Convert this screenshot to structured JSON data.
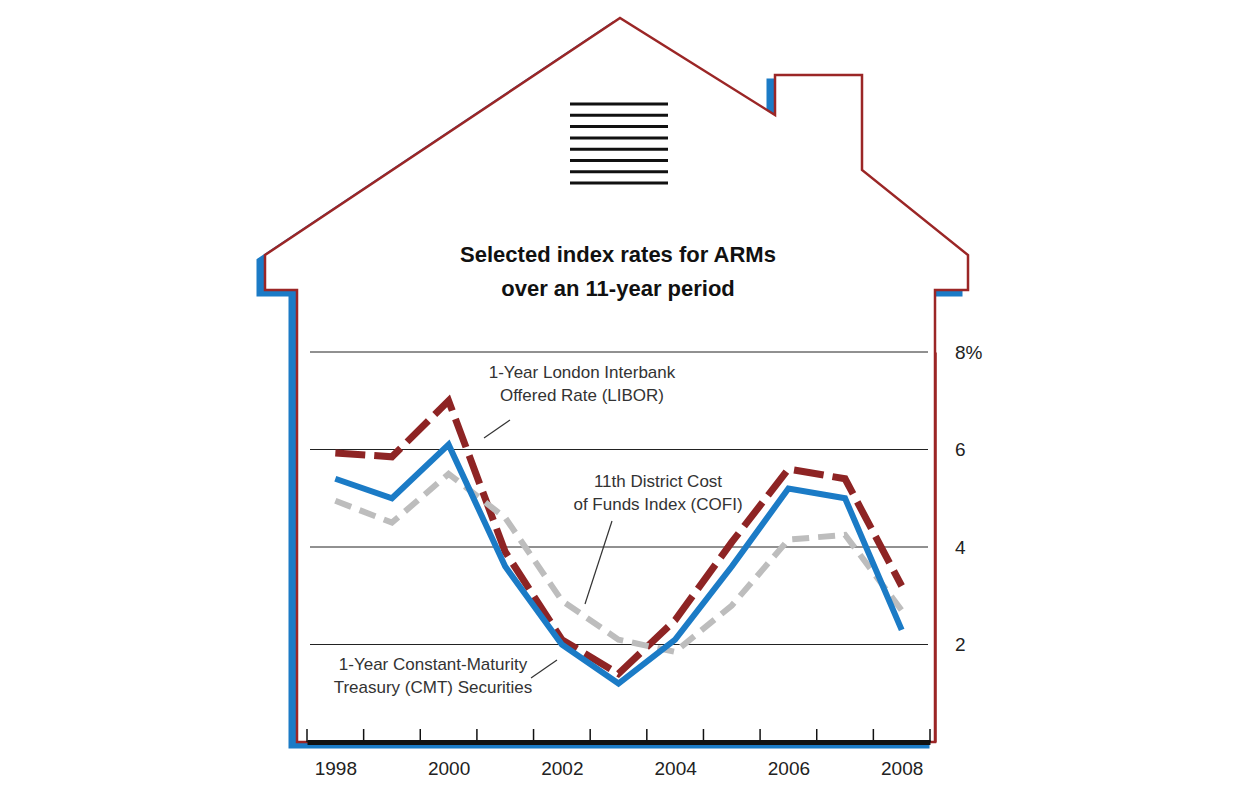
{
  "chart_data": {
    "type": "line",
    "title": [
      "Selected index rates for ARMs",
      "over an 11-year period"
    ],
    "x": [
      1998,
      1999,
      2000,
      2001,
      2002,
      2003,
      2004,
      2005,
      2006,
      2007,
      2008
    ],
    "xlim": [
      1997.5,
      2008.5
    ],
    "xticks": [
      1998,
      2000,
      2002,
      2004,
      2006,
      2008
    ],
    "xminor_ticks": [
      1997.5,
      1998.5,
      1999.5,
      2000.5,
      2001.5,
      2002.5,
      2003.5,
      2004.5,
      2005.5,
      2006.5,
      2007.5,
      2008.5
    ],
    "ylim": [
      0,
      8
    ],
    "yticks": [
      2,
      4,
      6,
      {
        "value": 8,
        "label": "8%"
      }
    ],
    "grid": true,
    "series": [
      {
        "name": [
          "1-Year London Interbank",
          "Offered Rate (LIBOR)"
        ],
        "color": "#8e2424",
        "line_style": "dashed",
        "values": [
          5.93,
          5.85,
          7.0,
          3.9,
          2.1,
          1.4,
          2.5,
          4.1,
          5.6,
          5.4,
          3.2
        ]
      },
      {
        "name": [
          "11th District Cost",
          "of Funds Index (COFI)"
        ],
        "color": "#bdbdbd",
        "line_style": "dotted",
        "values": [
          4.95,
          4.5,
          5.5,
          4.6,
          2.9,
          2.1,
          1.85,
          2.8,
          4.15,
          4.25,
          2.7
        ]
      },
      {
        "name": [
          "1-Year Constant-Maturity",
          "Treasury (CMT) Securities"
        ],
        "color": "#1b7bc6",
        "line_style": "solid",
        "values": [
          5.4,
          5.0,
          6.1,
          3.6,
          2.0,
          1.2,
          2.1,
          3.6,
          5.2,
          5.0,
          2.3
        ]
      }
    ]
  }
}
